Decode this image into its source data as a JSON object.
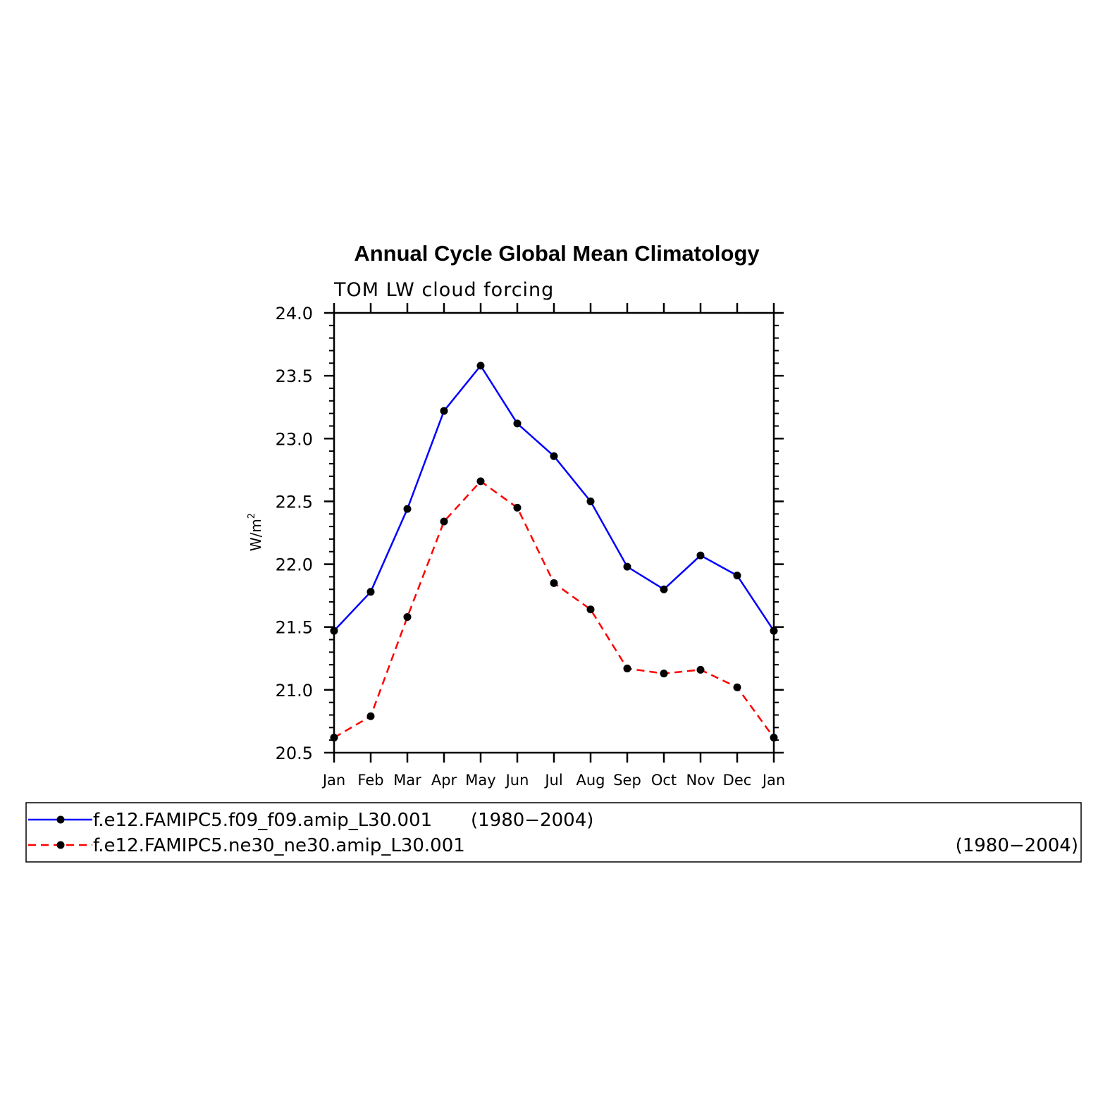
{
  "chart_data": {
    "type": "line",
    "title": "Annual Cycle Global Mean Climatology",
    "subtitle": "TOM LW cloud forcing",
    "ylabel": "W/m",
    "ylabel_superscript": "2",
    "categories": [
      "Jan",
      "Feb",
      "Mar",
      "Apr",
      "May",
      "Jun",
      "Jul",
      "Aug",
      "Sep",
      "Oct",
      "Nov",
      "Dec",
      "Jan"
    ],
    "ylim": [
      20.5,
      24.0
    ],
    "yticks": [
      "20.5",
      "21.0",
      "21.5",
      "22.0",
      "22.5",
      "23.0",
      "23.5",
      "24.0"
    ],
    "grid": false,
    "legend_position": "bottom",
    "series": [
      {
        "name": "f.e12.FAMIPC5.f09_f09.amip_L30.001",
        "period": "(1980−2004)",
        "color": "#0000ff",
        "style": "solid",
        "marker": "circle",
        "values": [
          21.47,
          21.78,
          22.44,
          23.22,
          23.58,
          23.12,
          22.86,
          22.5,
          21.98,
          21.8,
          22.07,
          21.91,
          21.47
        ]
      },
      {
        "name": "f.e12.FAMIPC5.ne30_ne30.amip_L30.001",
        "period": "(1980−2004)",
        "color": "#ff0000",
        "style": "dashed",
        "marker": "circle",
        "values": [
          20.62,
          20.79,
          21.58,
          22.34,
          22.66,
          22.45,
          21.85,
          21.64,
          21.17,
          21.13,
          21.16,
          21.02,
          20.62
        ]
      }
    ]
  }
}
